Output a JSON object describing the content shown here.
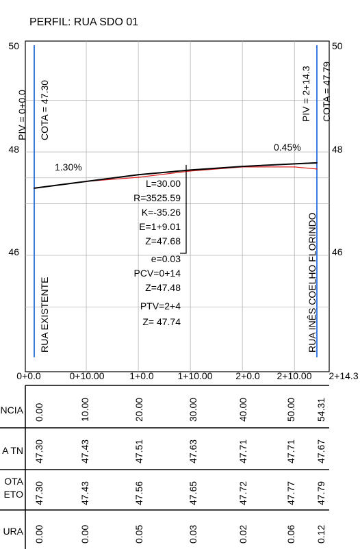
{
  "title": "PERFIL: RUA SDO 01",
  "left_axis": {
    "labels": [
      "50",
      "48",
      "46"
    ]
  },
  "right_axis": {
    "labels": [
      "50",
      "48",
      "46"
    ]
  },
  "piv_start": "PIV = 0+0.0",
  "cota_start": "COTA = 47.30",
  "piv_end": "PIV = 2+14.3",
  "cota_end": "COTA = 47.79",
  "slope_left": "1.30%",
  "slope_right": "0.45%",
  "curve_info": [
    "L=30.00",
    "R=3525.59",
    "K=-35.26",
    "E=1+9.01",
    "Z=47.68",
    "e=0.03",
    "PCV=0+14",
    "Z=47.48",
    "PTV=2+4",
    "Z= 47.74"
  ],
  "street_left": "RUA EXISTENTE",
  "street_right": "RUA INÊS COELHO FLORINDO",
  "stations": [
    "0+0.0",
    "0+10.00",
    "1+0.0",
    "1+10.00",
    "2+0.0",
    "2+10.00",
    "2+14.3"
  ],
  "table": {
    "row_labels": [
      "NCIA",
      "A TN",
      "OTA",
      "ETO",
      "URA"
    ],
    "distancia": [
      "0.00",
      "10.00",
      "20.00",
      "30.00",
      "40.00",
      "50.00",
      "54.31"
    ],
    "cota_tn": [
      "47.30",
      "47.43",
      "47.51",
      "47.63",
      "47.71",
      "47.71",
      "47.67"
    ],
    "cota_projeto": [
      "47.30",
      "47.43",
      "47.56",
      "47.65",
      "47.72",
      "47.77",
      "47.79"
    ],
    "altura": [
      "0.00",
      "0.00",
      "0.05",
      "0.03",
      "0.02",
      "0.06",
      "0.12"
    ]
  },
  "chart_data": {
    "type": "line",
    "title": "PERFIL: RUA SDO 01",
    "x": [
      0,
      10,
      20,
      30,
      40,
      50,
      54.31
    ],
    "xlim": [
      0,
      54.31
    ],
    "ylim": [
      44.5,
      50.2
    ],
    "grid": true,
    "series": [
      {
        "values": [
          47.3,
          47.43,
          47.51,
          47.63,
          47.71,
          47.71,
          47.67
        ],
        "color": "#e02020"
      },
      {
        "values": [
          47.3,
          47.43,
          47.56,
          47.65,
          47.72,
          47.77,
          47.79
        ],
        "color": "#000000"
      }
    ],
    "colors": {
      "grid": "#b4b4b4",
      "piv_line": "#3a7be0",
      "terrain": "#e02020",
      "project": "#000000"
    }
  }
}
